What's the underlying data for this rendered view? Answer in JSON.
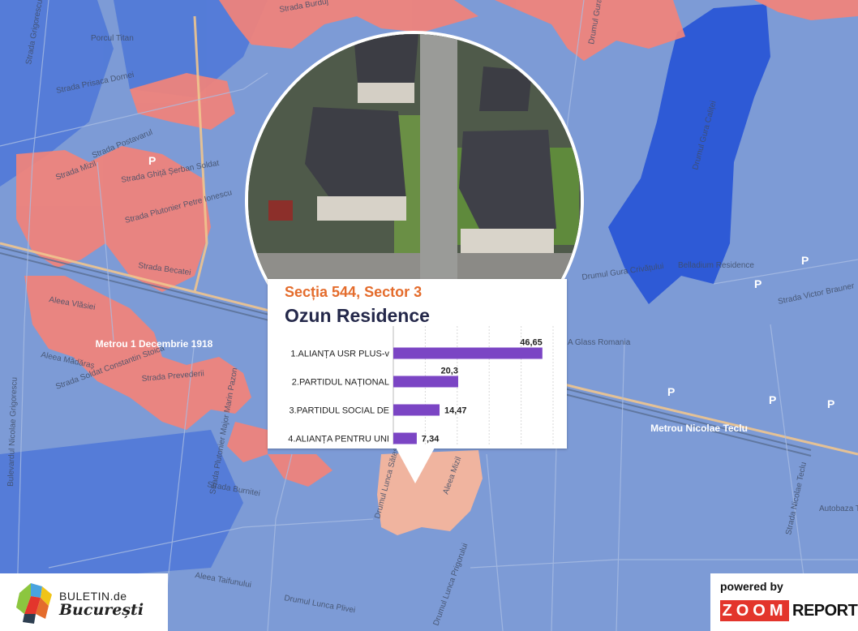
{
  "popup": {
    "subtitle": "Secția 544, Sector 3",
    "title": "Ozun Residence"
  },
  "chart_data": {
    "type": "bar",
    "orientation": "horizontal",
    "categories": [
      "1.ALIANȚA USR PLUS-v",
      "2.PARTIDUL NAȚIONAL",
      "3.PARTIDUL SOCIAL DE",
      "4.ALIANȚA PENTRU UNI"
    ],
    "values": [
      46.65,
      20.3,
      14.47,
      7.34
    ],
    "value_labels": [
      "46,65",
      "20,3",
      "14,47",
      "7,34"
    ],
    "xlim": [
      0,
      50
    ],
    "grid": true,
    "bar_color": "#7b45c4"
  },
  "map": {
    "streets": [
      "Strada Burduj",
      "Strada Grigorescu",
      "Strada Prisaca Dornei",
      "Strada Postavarul",
      "Strada Mizil",
      "Strada Ghiță Șerban Soldat",
      "Strada Plutonier Petre Ionescu",
      "Strada Becatei",
      "Aleea Vlăsiei",
      "Aleea Mădăraș",
      "Strada Soldat Constantin Stoica",
      "Strada Prevederii",
      "Strada Burnitei",
      "Strada Plutonier Major Marin Pazon",
      "Aleea Taifunului",
      "Drumul Lunca Plivei",
      "Drumul Lunca Prigorului",
      "Drumul Lunca Sătești",
      "Aleea Mizil",
      "Strada Victor Brauner",
      "Drumul Gura Crivățului",
      "Drumul Gura Caliței",
      "Drumul Gura Putnei",
      "Strada Nicolae Teclu",
      "Bulevardul Nicolae Grigorescu"
    ],
    "places": {
      "park": "Porcul Titan",
      "metro_west": "Metrou 1 Decembrie 1918",
      "metro_east": "Metrou Nicolae Teclu",
      "residence": "Belladium Residence",
      "glass": "A Glass Romania",
      "autobaza": "Autobaza Titan"
    },
    "parking_label": "P",
    "colors": {
      "base": "#7d9bd6",
      "usr": "#f2837a",
      "psd": "#3f68d4",
      "highlight": "#f7b59c"
    }
  },
  "brand_left": {
    "line1": "BULETIN.de",
    "line2": "București"
  },
  "brand_right": {
    "powered": "powered by",
    "zoom": "ZOOM",
    "report": "REPORT"
  }
}
